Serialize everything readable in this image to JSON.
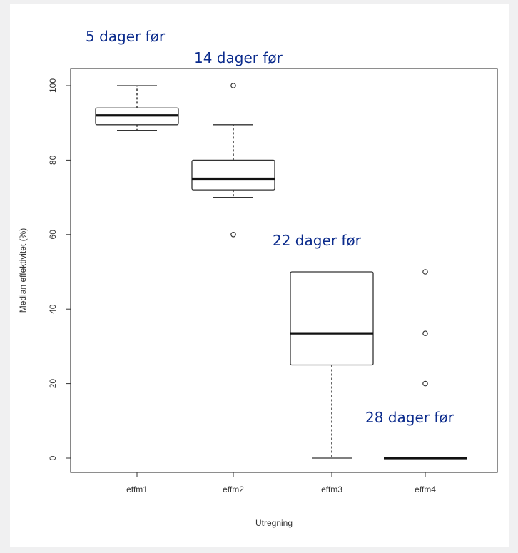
{
  "chart_data": {
    "type": "boxplot",
    "xlabel": "Utregning",
    "ylabel": "Median effektivitet (%)",
    "ylim": [
      -4,
      105
    ],
    "yticks": [
      0,
      20,
      40,
      60,
      80,
      100
    ],
    "categories": [
      "effm1",
      "effm2",
      "effm3",
      "effm4"
    ],
    "boxes": [
      {
        "name": "effm1",
        "whisker_low": 88,
        "q1": 89.5,
        "median": 92,
        "q3": 94,
        "whisker_high": 100,
        "outliers": []
      },
      {
        "name": "effm2",
        "whisker_low": 70,
        "q1": 72,
        "median": 75,
        "q3": 80,
        "whisker_high": 89.5,
        "outliers": [
          100,
          60
        ]
      },
      {
        "name": "effm3",
        "whisker_low": 0,
        "q1": 25,
        "median": 33.5,
        "q3": 50,
        "whisker_high": 50,
        "outliers": []
      },
      {
        "name": "effm4",
        "whisker_low": 0,
        "q1": 0,
        "median": 0,
        "q3": 0,
        "whisker_high": 0,
        "outliers": [
          50,
          33.5,
          20
        ]
      }
    ],
    "annotations": [
      {
        "text": "5 dager før",
        "for": "effm1"
      },
      {
        "text": "14 dager før",
        "for": "effm2"
      },
      {
        "text": "22 dager før",
        "for": "effm3"
      },
      {
        "text": "28 dager før",
        "for": "effm4"
      }
    ],
    "colors": {
      "annotation": "#0b2b8c",
      "box": "#333333",
      "background": "#ffffff",
      "page": "#f0f0f1"
    }
  }
}
